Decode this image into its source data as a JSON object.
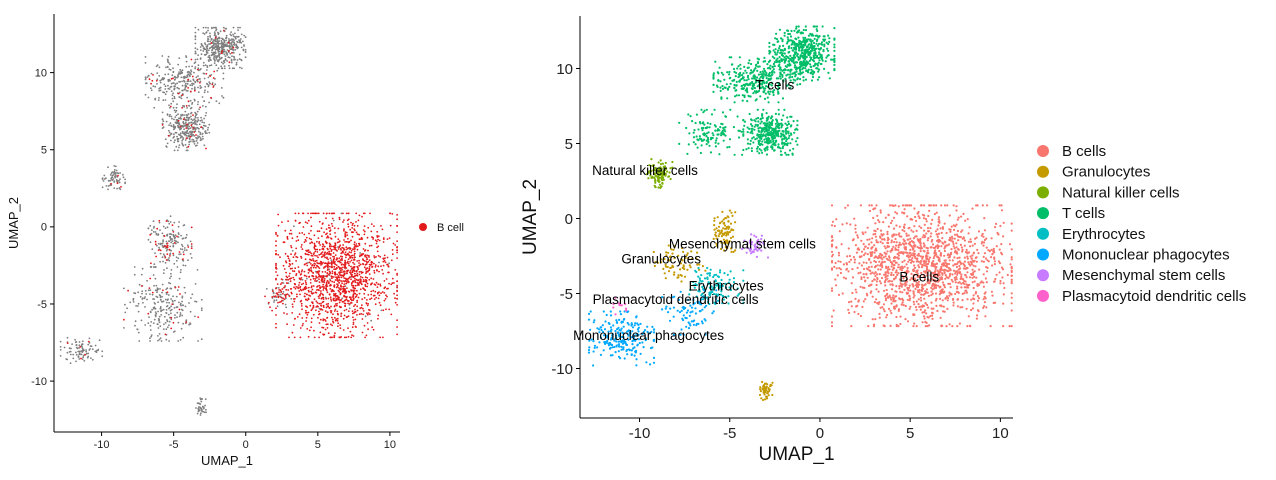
{
  "chart_data": [
    {
      "type": "scatter",
      "xlabel": "UMAP_1",
      "ylabel": "UMAP_2",
      "xlim": [
        -13.3,
        10.7
      ],
      "ylim": [
        -13.3,
        13.8
      ],
      "xticks": [
        -10,
        -5,
        0,
        5,
        10
      ],
      "yticks": [
        -10,
        -5,
        0,
        5,
        10
      ],
      "xtick_labels": [
        "-10",
        "-5",
        "0",
        "5",
        "10"
      ],
      "ytick_labels": [
        "-10",
        "-5",
        "0",
        "5",
        "10"
      ],
      "grid": false,
      "legend_position": "right",
      "background_color": "#7f7f7f",
      "series": [
        {
          "name": "B cell",
          "color": "#e31a1c"
        }
      ],
      "clusters": [
        {
          "x": [
            -3.2,
            -0.3
          ],
          "y": [
            10.5,
            12.7
          ],
          "count": 420,
          "highlight": 0.02
        },
        {
          "x": [
            -6.5,
            -2.0
          ],
          "y": [
            8.0,
            10.8
          ],
          "count": 300,
          "highlight": 0.08
        },
        {
          "x": [
            -5.5,
            -2.8
          ],
          "y": [
            5.2,
            7.6
          ],
          "count": 320,
          "highlight": 0.05
        },
        {
          "x": [
            -9.8,
            -8.5
          ],
          "y": [
            2.3,
            3.8
          ],
          "count": 70,
          "highlight": 0.02
        },
        {
          "x": [
            -6.5,
            -4.0
          ],
          "y": [
            -2.5,
            0.4
          ],
          "count": 180,
          "highlight": 0.15
        },
        {
          "x": [
            -12.6,
            -10.2
          ],
          "y": [
            -8.7,
            -7.3
          ],
          "count": 90,
          "highlight": 0.03
        },
        {
          "x": [
            -8.0,
            -3.5
          ],
          "y": [
            -7.0,
            -3.0
          ],
          "count": 260,
          "highlight": 0.1
        },
        {
          "x": [
            -3.4,
            -2.8
          ],
          "y": [
            -12.2,
            -11.2
          ],
          "count": 40,
          "highlight": 0.0
        },
        {
          "x": [
            1.4,
            3.0
          ],
          "y": [
            -5.3,
            -3.6
          ],
          "count": 60,
          "highlight": 0.5
        },
        {
          "x": [
            2.8,
            9.8
          ],
          "y": [
            -6.5,
            0.2
          ],
          "count": 1500,
          "highlight": 0.97
        }
      ]
    },
    {
      "type": "scatter",
      "xlabel": "UMAP_1",
      "ylabel": "UMAP_2",
      "xlim": [
        -13.3,
        10.7
      ],
      "ylim": [
        -13.3,
        13.5
      ],
      "xticks": [
        -10,
        -5,
        0,
        5,
        10
      ],
      "yticks": [
        -10,
        -5,
        0,
        5,
        10
      ],
      "xtick_labels": [
        "-10",
        "-5",
        "0",
        "5",
        "10"
      ],
      "ytick_labels": [
        "-10",
        "-5",
        "0",
        "5",
        "10"
      ],
      "grid": false,
      "legend_position": "right",
      "series": [
        {
          "name": "B cells",
          "color": "#f8766d",
          "label_at": [
            5.5,
            -4.2
          ],
          "clusters": [
            {
              "x": [
                1.5,
                9.8
              ],
              "y": [
                -6.5,
                0.2
              ],
              "count": 1500
            }
          ]
        },
        {
          "name": "Granulocytes",
          "color": "#c49a00",
          "label_at": [
            -8.8,
            -3.0
          ],
          "clusters": [
            {
              "x": [
                -5.8,
                -4.8
              ],
              "y": [
                -2.0,
                0.3
              ],
              "count": 90
            },
            {
              "x": [
                -9.0,
                -6.5
              ],
              "y": [
                -4.0,
                -2.0
              ],
              "count": 70
            },
            {
              "x": [
                -3.4,
                -2.7
              ],
              "y": [
                -12.0,
                -11.0
              ],
              "count": 50
            }
          ]
        },
        {
          "name": "Natural killer cells",
          "color": "#7cae00",
          "label_at": [
            -9.7,
            2.9
          ],
          "clusters": [
            {
              "x": [
                -9.5,
                -8.3
              ],
              "y": [
                2.2,
                3.8
              ],
              "count": 110
            }
          ]
        },
        {
          "name": "T cells",
          "color": "#00be67",
          "label_at": [
            -2.5,
            8.6
          ],
          "clusters": [
            {
              "x": [
                -2.5,
                0.5
              ],
              "y": [
                9.5,
                12.5
              ],
              "count": 500
            },
            {
              "x": [
                -5.5,
                -1.5
              ],
              "y": [
                8.0,
                10.5
              ],
              "count": 320
            },
            {
              "x": [
                -4.0,
                -1.5
              ],
              "y": [
                4.5,
                7.0
              ],
              "count": 340
            },
            {
              "x": [
                -7.5,
                -4.5
              ],
              "y": [
                4.5,
                7.0
              ],
              "count": 120
            }
          ]
        },
        {
          "name": "Erythrocytes",
          "color": "#00bfc4",
          "label_at": [
            -5.2,
            -4.8
          ],
          "clusters": [
            {
              "x": [
                -7.0,
                -4.5
              ],
              "y": [
                -5.5,
                -3.5
              ],
              "count": 120
            }
          ]
        },
        {
          "name": "Mononuclear phagocytes",
          "color": "#00a9ff",
          "label_at": [
            -9.5,
            -8.1
          ],
          "clusters": [
            {
              "x": [
                -12.5,
                -9.5
              ],
              "y": [
                -9.5,
                -6.5
              ],
              "count": 220
            },
            {
              "x": [
                -8.5,
                -6.0
              ],
              "y": [
                -7.5,
                -5.0
              ],
              "count": 80
            }
          ]
        },
        {
          "name": "Mesenchymal stem cells",
          "color": "#c77cff",
          "label_at": [
            -4.3,
            -2.0
          ],
          "clusters": [
            {
              "x": [
                -4.2,
                -3.0
              ],
              "y": [
                -2.6,
                -1.2
              ],
              "count": 45
            }
          ]
        },
        {
          "name": "Plasmacytoid dendritic cells",
          "color": "#ff61cc",
          "label_at": [
            -8.0,
            -5.7
          ],
          "clusters": [
            {
              "x": [
                -11.5,
                -10.5
              ],
              "y": [
                -6.3,
                -5.3
              ],
              "count": 12
            }
          ]
        }
      ],
      "cluster_labels": [
        {
          "text": "T cells",
          "x": -2.5,
          "y": 8.6
        },
        {
          "text": "Natural killer cells",
          "x": -9.7,
          "y": 2.9
        },
        {
          "text": "Mesenchymal stem cells",
          "x": -4.3,
          "y": -2.0
        },
        {
          "text": "Granulocytes",
          "x": -8.8,
          "y": -3.0
        },
        {
          "text": "B cells",
          "x": 5.5,
          "y": -4.2
        },
        {
          "text": "Erythrocytes",
          "x": -5.2,
          "y": -4.8
        },
        {
          "text": "Plasmacytoid dendritic cells",
          "x": -8.0,
          "y": -5.7
        },
        {
          "text": "Mononuclear phagocytes",
          "x": -9.5,
          "y": -8.1
        }
      ]
    }
  ]
}
